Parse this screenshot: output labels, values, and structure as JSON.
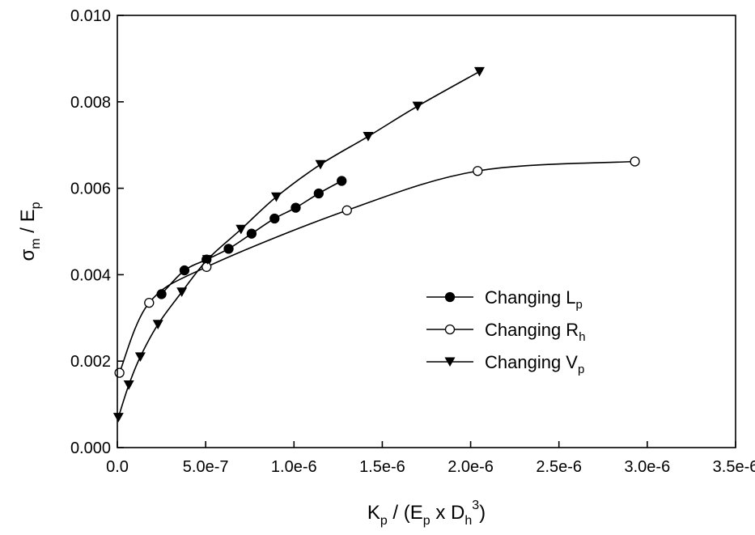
{
  "chart_data": {
    "type": "line",
    "title": "",
    "xlabel": {
      "main": "K",
      "sub1": "p",
      "mid": " / (E",
      "sub2": "p",
      "mid2": " x D",
      "sub3": "h",
      "sup": "3",
      "end": ")"
    },
    "ylabel": {
      "main": "σ",
      "sub1": "m",
      "mid": " / E",
      "sub2": "p"
    },
    "xlim": [
      0,
      3.5e-06
    ],
    "ylim": [
      0,
      0.01
    ],
    "x_ticks": [
      0,
      5e-07,
      1e-06,
      1.5e-06,
      2e-06,
      2.5e-06,
      3e-06,
      3.5e-06
    ],
    "x_tick_labels": [
      "0.0",
      "5.0e-7",
      "1.0e-6",
      "1.5e-6",
      "2.0e-6",
      "2.5e-6",
      "3.0e-6",
      "3.5e-6"
    ],
    "y_ticks": [
      0,
      0.002,
      0.004,
      0.006,
      0.008,
      0.01
    ],
    "y_tick_labels": [
      "0.000",
      "0.002",
      "0.004",
      "0.006",
      "0.008",
      "0.010"
    ],
    "grid": false,
    "legend_position": "center-right",
    "series": [
      {
        "name": "Changing L",
        "name_sub": "p",
        "marker": "filled-circle",
        "x": [
          2.5e-07,
          3.8e-07,
          5.05e-07,
          6.3e-07,
          7.6e-07,
          8.9e-07,
          1.01e-06,
          1.14e-06,
          1.27e-06
        ],
        "y": [
          0.00355,
          0.0041,
          0.00435,
          0.0046,
          0.00495,
          0.0053,
          0.00555,
          0.00588,
          0.00617
        ]
      },
      {
        "name": "Changing R",
        "name_sub": "h",
        "marker": "open-circle",
        "x": [
          1.2e-08,
          1.8e-07,
          5.05e-07,
          1.3e-06,
          2.04e-06,
          2.93e-06
        ],
        "y": [
          0.00173,
          0.00335,
          0.00418,
          0.00549,
          0.0064,
          0.00662
        ]
      },
      {
        "name": "Changing V",
        "name_sub": "p",
        "marker": "filled-triangle-down",
        "x": [
          6e-09,
          6.5e-08,
          1.3e-07,
          2.3e-07,
          3.65e-07,
          5.1e-07,
          7e-07,
          9e-07,
          1.15e-06,
          1.42e-06,
          1.7e-06,
          2.05e-06
        ],
        "y": [
          0.0007,
          0.00145,
          0.0021,
          0.00285,
          0.0036,
          0.00435,
          0.00505,
          0.0058,
          0.00655,
          0.0072,
          0.0079,
          0.0087
        ]
      }
    ]
  }
}
